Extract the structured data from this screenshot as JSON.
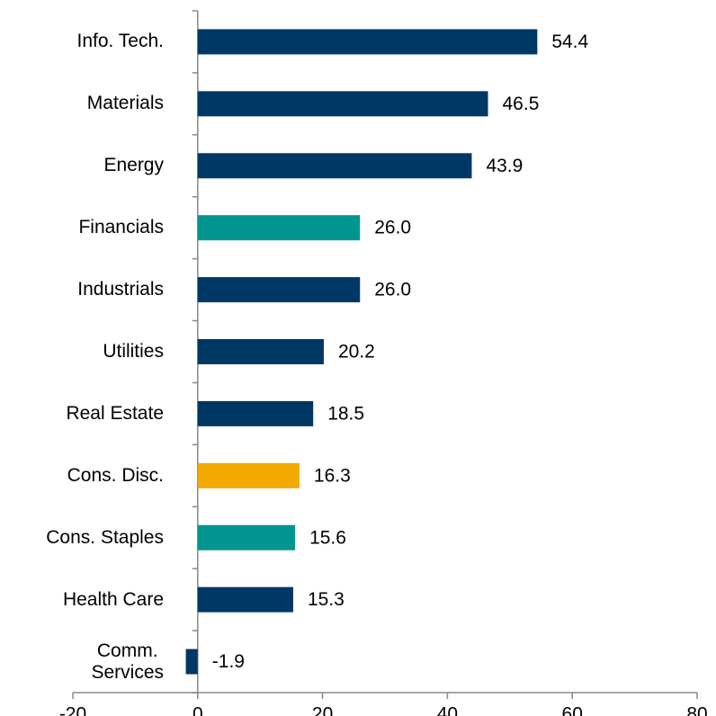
{
  "chart_data": {
    "type": "barh",
    "categories": [
      "Info. Tech.",
      "Materials",
      "Energy",
      "Financials",
      "Industrials",
      "Utilities",
      "Real Estate",
      "Cons. Disc.",
      "Cons. Staples",
      "Health Care",
      "Comm.\nServices"
    ],
    "values": [
      54.4,
      46.5,
      43.9,
      26.0,
      26.0,
      20.2,
      18.5,
      16.3,
      15.6,
      15.3,
      -1.9
    ],
    "value_labels": [
      "54.4",
      "46.5",
      "43.9",
      "26.0",
      "26.0",
      "20.2",
      "18.5",
      "16.3",
      "15.6",
      "15.3",
      "-1.9"
    ],
    "colors": [
      "#003865",
      "#003865",
      "#003865",
      "#00968f",
      "#003865",
      "#003865",
      "#003865",
      "#f2a900",
      "#00968f",
      "#003865",
      "#003865"
    ],
    "xlim": [
      -20,
      80
    ],
    "xticks": [
      -20,
      0,
      20,
      40,
      60,
      80
    ],
    "grid": false
  }
}
